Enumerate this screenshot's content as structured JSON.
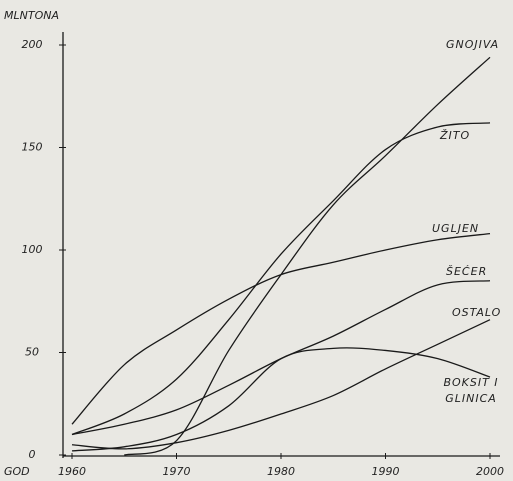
{
  "chart_data": {
    "type": "line",
    "y_label": "MLNTONA",
    "x_label": "GOD",
    "x": [
      1960,
      1965,
      1970,
      1975,
      1980,
      1985,
      1990,
      1995,
      2000
    ],
    "xlim": [
      1960,
      2000
    ],
    "xticks": [
      1960,
      1970,
      1980,
      1990,
      2000
    ],
    "ylim": [
      0,
      200
    ],
    "yticks": [
      0,
      50,
      100,
      150,
      200
    ],
    "series": [
      {
        "name": "GNOJIVA",
        "color": "#1a1a1a",
        "values": [
          null,
          0,
          7,
          51,
          88,
          122,
          146,
          171,
          194
        ]
      },
      {
        "name": "ŽITO",
        "color": "#1a1a1a",
        "values": [
          10,
          20,
          37,
          66,
          98,
          124,
          149,
          160,
          162
        ]
      },
      {
        "name": "UGLJEN",
        "color": "#1a1a1a",
        "values": [
          15,
          44,
          61,
          76,
          88,
          94,
          100,
          105,
          108
        ]
      },
      {
        "name": "ŠEĆER",
        "color": "#1a1a1a",
        "values": [
          10,
          15,
          22,
          34,
          47,
          58,
          71,
          83,
          85
        ]
      },
      {
        "name": "OSTALO",
        "color": "#1a1a1a",
        "values": [
          5,
          3,
          6,
          12,
          20,
          29,
          42,
          54,
          66
        ]
      },
      {
        "name": "BOKSIT I GLINICA",
        "color": "#1a1a1a",
        "values": [
          2,
          4,
          10,
          24,
          47,
          52,
          51,
          47,
          38
        ]
      }
    ]
  }
}
